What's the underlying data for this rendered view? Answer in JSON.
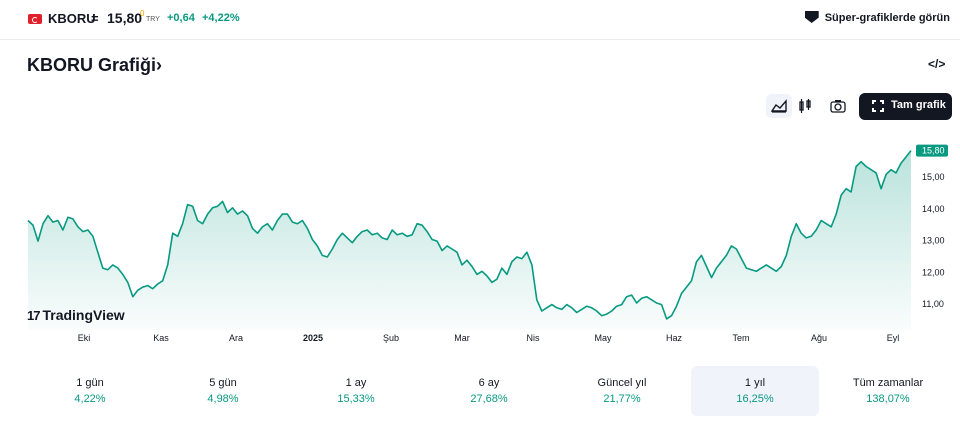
{
  "header": {
    "symbol": "KBORU",
    "separator": "=",
    "price": "15,80",
    "price_superscript": "0",
    "currency": "TRY",
    "change": "+0,64",
    "change_percent": "+4,22%",
    "super_charts_link": "Süper-grafiklerde görün",
    "flag_icon": "turkey-flag-icon"
  },
  "page": {
    "title": "KBORU Grafiği›"
  },
  "toolbar": {
    "full_chart_label": "Tam grafik"
  },
  "branding": {
    "logo_text": "TradingView",
    "logo_mark": "17"
  },
  "colors": {
    "line": "#089981",
    "accent_text": "#089981",
    "price_label_bg": "#089981",
    "button_dark": "#131722"
  },
  "chart_data": {
    "type": "area",
    "series": [
      {
        "y": [
          13.6,
          13.45,
          12.95,
          13.5,
          13.75,
          13.55,
          13.6,
          13.3,
          13.7,
          13.65,
          13.4,
          13.25,
          13.3,
          13.1,
          12.6,
          12.1,
          12.05,
          12.2,
          12.1,
          11.9,
          11.65,
          11.2,
          11.4,
          11.5,
          11.55,
          11.45,
          11.6,
          11.7,
          12.2,
          13.2,
          13.1,
          13.5,
          14.1,
          14.05,
          13.6,
          13.5,
          13.8,
          14.0,
          14.05,
          14.2,
          13.85,
          14.0,
          13.8,
          13.9,
          13.75,
          13.35,
          13.2,
          13.4,
          13.5,
          13.3,
          13.6,
          13.8,
          13.8,
          13.55,
          13.5,
          13.6,
          13.35,
          13.0,
          12.8,
          12.5,
          12.45,
          12.7,
          13.0,
          13.2,
          13.05,
          12.9,
          13.1,
          13.25,
          13.3,
          13.15,
          13.2,
          13.05,
          13.0,
          13.3,
          13.15,
          13.2,
          13.1,
          13.15,
          13.5,
          13.45,
          13.25,
          13.0,
          12.95,
          12.65,
          12.8,
          12.7,
          12.6,
          12.2,
          12.35,
          12.15,
          11.9,
          12.0,
          11.85,
          11.65,
          11.75,
          12.1,
          11.9,
          12.3,
          12.45,
          12.4,
          12.6,
          12.2,
          11.1,
          10.75,
          10.85,
          10.95,
          10.85,
          10.8,
          10.95,
          10.85,
          10.7,
          10.8,
          10.9,
          10.85,
          10.75,
          10.6,
          10.65,
          10.75,
          10.9,
          10.95,
          11.2,
          11.25,
          11.0,
          11.15,
          11.2,
          11.1,
          11.0,
          10.95,
          10.5,
          10.6,
          10.9,
          11.3,
          11.5,
          11.7,
          12.3,
          12.5,
          12.15,
          11.8,
          12.1,
          12.3,
          12.5,
          12.8,
          12.7,
          12.4,
          12.1,
          12.05,
          12.0,
          12.1,
          12.2,
          12.1,
          12.0,
          12.15,
          12.5,
          13.1,
          13.5,
          13.2,
          13.05,
          13.1,
          13.3,
          13.6,
          13.5,
          13.4,
          13.8,
          14.4,
          14.6,
          14.5,
          15.3,
          15.45,
          15.3,
          15.2,
          15.1,
          14.6,
          15.05,
          15.2,
          15.1,
          15.4,
          15.6,
          15.8
        ]
      }
    ],
    "x_tick_labels": [
      "Eki",
      "Kas",
      "Ara",
      "2025",
      "Şub",
      "Mar",
      "Nis",
      "May",
      "Haz",
      "Tem",
      "Ağu",
      "Eyl"
    ],
    "y_tick_labels": [
      "11,00",
      "12,00",
      "13,00",
      "14,00",
      "15,00"
    ],
    "y_ticks": [
      11,
      12,
      13,
      14,
      15
    ],
    "ylim": [
      10.15,
      16.45
    ],
    "last_value_label": "15,80",
    "grid": false,
    "scale": "linear"
  },
  "periods": [
    {
      "label": "1 gün",
      "value": "4,22%"
    },
    {
      "label": "5 gün",
      "value": "4,98%"
    },
    {
      "label": "1 ay",
      "value": "15,33%"
    },
    {
      "label": "6 ay",
      "value": "27,68%"
    },
    {
      "label": "Güncel yıl",
      "value": "21,77%"
    },
    {
      "label": "1 yıl",
      "value": "16,25%",
      "selected": true
    },
    {
      "label": "Tüm zamanlar",
      "value": "138,07%"
    }
  ]
}
